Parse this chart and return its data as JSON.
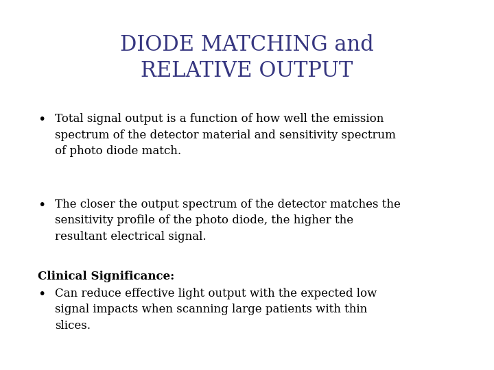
{
  "title_line1": "DIODE MATCHING and",
  "title_line2": "RELATIVE OUTPUT",
  "title_color": "#363680",
  "title_fontsize": 22,
  "body_color": "#000000",
  "body_fontsize": 12,
  "clinical_label": "Clinical Significance:",
  "clinical_fontsize": 12,
  "bullet1": "Total signal output is a function of how well the emission\nspectrum of the detector material and sensitivity spectrum\nof photo diode match.",
  "bullet2": "The closer the output spectrum of the detector matches the\nsensitivity profile of the photo diode, the higher the\nresultant electrical signal.",
  "bullet3": "Can reduce effective light output with the expected low\nsignal impacts when scanning large patients with thin\nslices.",
  "background_color": "#ffffff"
}
